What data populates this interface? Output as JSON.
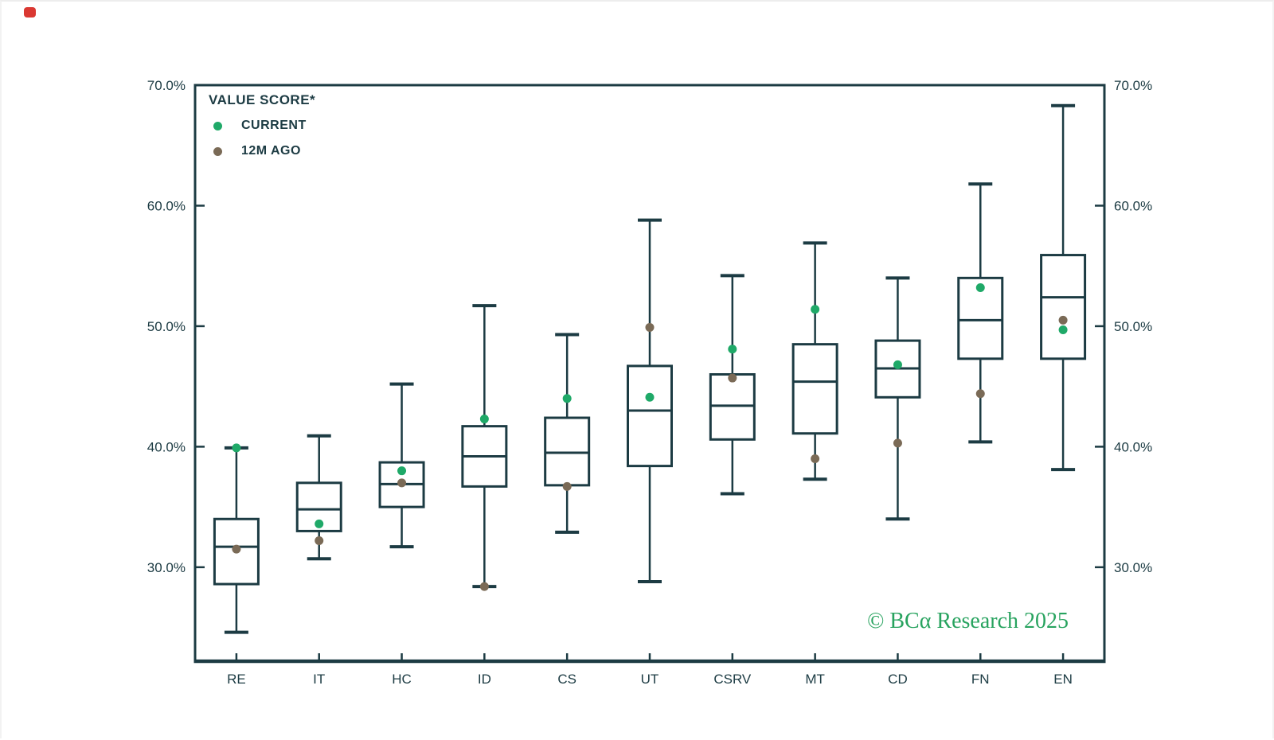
{
  "chart_data": {
    "type": "boxplot",
    "legend": {
      "title": "VALUE SCORE*",
      "entries": [
        {
          "label": "CURRENT",
          "color": "#1fa968"
        },
        {
          "label": "12M AGO",
          "color": "#7a6a56"
        }
      ]
    },
    "watermark": "© BCα Research 2025",
    "y_axis": {
      "unit": "%",
      "max": 70,
      "min": 22.2,
      "ticks": [
        {
          "label": "70.0%",
          "value": 70
        },
        {
          "label": "60.0%",
          "value": 60
        },
        {
          "label": "50.0%",
          "value": 50
        },
        {
          "label": "40.0%",
          "value": 40
        },
        {
          "label": "30.0%",
          "value": 30
        }
      ],
      "label_sides": "both",
      "grid": false
    },
    "categories": [
      "RE",
      "IT",
      "HC",
      "ID",
      "CS",
      "UT",
      "CSRV",
      "MT",
      "CD",
      "FN",
      "EN"
    ],
    "boxes": [
      {
        "category": "RE",
        "whisker_low": 24.6,
        "q1": 28.6,
        "median": 31.7,
        "q3": 34.0,
        "whisker_high": 39.9,
        "current": 39.9,
        "twelve_m_ago": 31.5
      },
      {
        "category": "IT",
        "whisker_low": 30.7,
        "q1": 33.0,
        "median": 34.8,
        "q3": 37.0,
        "whisker_high": 40.9,
        "current": 33.6,
        "twelve_m_ago": 32.2
      },
      {
        "category": "HC",
        "whisker_low": 31.7,
        "q1": 35.0,
        "median": 36.9,
        "q3": 38.7,
        "whisker_high": 45.2,
        "current": 38.0,
        "twelve_m_ago": 37.0
      },
      {
        "category": "ID",
        "whisker_low": 28.4,
        "q1": 36.7,
        "median": 39.2,
        "q3": 41.7,
        "whisker_high": 51.7,
        "current": 42.3,
        "twelve_m_ago": 28.4
      },
      {
        "category": "CS",
        "whisker_low": 32.9,
        "q1": 36.8,
        "median": 39.5,
        "q3": 42.4,
        "whisker_high": 49.3,
        "current": 44.0,
        "twelve_m_ago": 36.7
      },
      {
        "category": "UT",
        "whisker_low": 28.8,
        "q1": 38.4,
        "median": 43.0,
        "q3": 46.7,
        "whisker_high": 58.8,
        "current": 44.1,
        "twelve_m_ago": 49.9
      },
      {
        "category": "CSRV",
        "whisker_low": 36.1,
        "q1": 40.6,
        "median": 43.4,
        "q3": 46.0,
        "whisker_high": 54.2,
        "current": 48.1,
        "twelve_m_ago": 45.7
      },
      {
        "category": "MT",
        "whisker_low": 37.3,
        "q1": 41.1,
        "median": 45.4,
        "q3": 48.5,
        "whisker_high": 56.9,
        "current": 51.4,
        "twelve_m_ago": 39.0
      },
      {
        "category": "CD",
        "whisker_low": 34.0,
        "q1": 44.1,
        "median": 46.5,
        "q3": 48.8,
        "whisker_high": 54.0,
        "current": 46.8,
        "twelve_m_ago": 40.3
      },
      {
        "category": "FN",
        "whisker_low": 40.4,
        "q1": 47.3,
        "median": 50.5,
        "q3": 54.0,
        "whisker_high": 61.8,
        "current": 53.2,
        "twelve_m_ago": 44.4
      },
      {
        "category": "EN",
        "whisker_low": 38.1,
        "q1": 47.3,
        "median": 52.4,
        "q3": 55.9,
        "whisker_high": 68.3,
        "current": 49.7,
        "twelve_m_ago": 50.5
      }
    ],
    "colors": {
      "frame": "#1c3b43",
      "text": "#1c3b43",
      "box_fill": "#ffffff",
      "current_dot": "#1fa968",
      "ago_dot": "#7a6a56",
      "watermark": "#28a35f"
    }
  }
}
